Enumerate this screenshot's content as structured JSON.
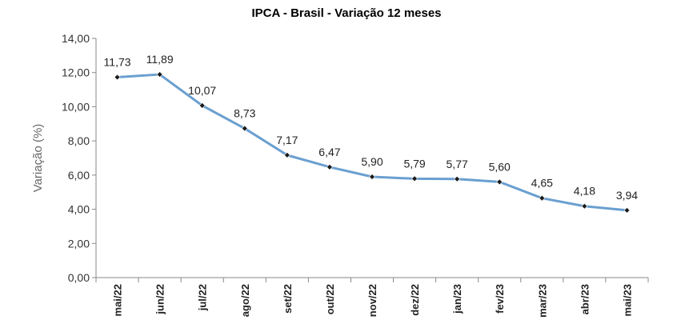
{
  "chart_data": {
    "type": "line",
    "title": "IPCA - Brasil - Variação 12 meses",
    "ylabel": "Variação (%)",
    "xlabel": "",
    "ylim": [
      0,
      14
    ],
    "yticks": [
      "0,00",
      "2,00",
      "4,00",
      "6,00",
      "8,00",
      "10,00",
      "12,00",
      "14,00"
    ],
    "ytick_values": [
      0,
      2,
      4,
      6,
      8,
      10,
      12,
      14
    ],
    "categories": [
      "mai/22",
      "jun/22",
      "jul/22",
      "ago/22",
      "set/22",
      "out/22",
      "nov/22",
      "dez/22",
      "jan/23",
      "fev/23",
      "mar/23",
      "abr/23",
      "mai/23"
    ],
    "values": [
      11.73,
      11.89,
      10.07,
      8.73,
      7.17,
      6.47,
      5.9,
      5.79,
      5.77,
      5.6,
      4.65,
      4.18,
      3.94
    ],
    "value_labels": [
      "11,73",
      "11,89",
      "10,07",
      "8,73",
      "7,17",
      "6,47",
      "5,90",
      "5,79",
      "5,77",
      "5,60",
      "4,65",
      "4,18",
      "3,94"
    ],
    "line_color": "#6a9fd0",
    "marker_color": "#1a1a1a",
    "grid": false,
    "legend": "none"
  }
}
